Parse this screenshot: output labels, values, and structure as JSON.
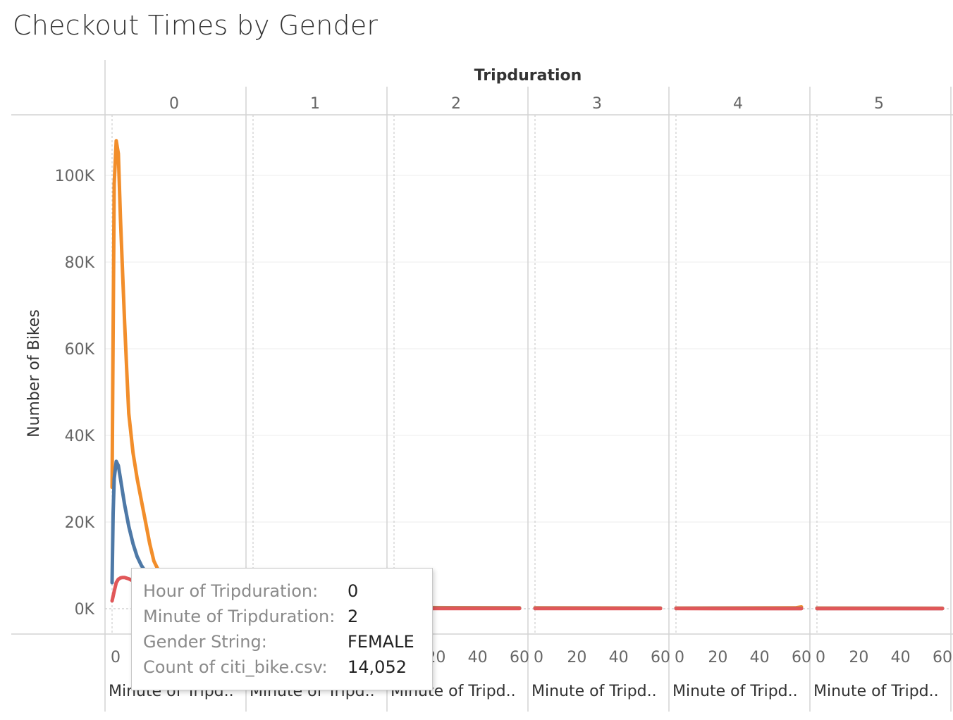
{
  "title": "Checkout Times by Gender",
  "chart_data": {
    "type": "line",
    "column_header": "Tripduration",
    "panels": [
      "0",
      "1",
      "2",
      "3",
      "4",
      "5"
    ],
    "ylabel": "Number of Bikes",
    "xlabel": "Minute of Tripd..",
    "ylim": [
      0,
      115000
    ],
    "yticks": [
      0,
      20000,
      40000,
      60000,
      80000,
      100000
    ],
    "ytick_labels": [
      "0K",
      "20K",
      "40K",
      "60K",
      "80K",
      "100K"
    ],
    "xlim": [
      0,
      60
    ],
    "xticks": [
      0,
      20,
      40,
      60
    ],
    "xtick_labels": [
      "0",
      "20",
      "40",
      "60"
    ],
    "grid": true,
    "series": [
      {
        "color": "#f28e2b",
        "panels": [
          {
            "x": [
              0,
              0.3,
              1,
              2,
              3,
              4,
              5,
              6,
              7,
              8,
              10,
              12,
              14,
              16,
              18,
              20,
              25,
              30,
              40,
              50,
              60
            ],
            "y": [
              28000,
              50000,
              98000,
              108000,
              105000,
              90000,
              78000,
              66000,
              55000,
              45000,
              36000,
              30000,
              25000,
              20000,
              15000,
              11000,
              6000,
              3500,
              1800,
              1000,
              700
            ]
          },
          {
            "x": [
              0,
              60
            ],
            "y": [
              500,
              300
            ]
          },
          {
            "x": [
              0,
              60
            ],
            "y": [
              300,
              200
            ]
          },
          {
            "x": [
              0,
              60
            ],
            "y": [
              200,
              150
            ]
          },
          {
            "x": [
              0,
              57,
              60
            ],
            "y": [
              150,
              200,
              400
            ]
          },
          {
            "x": [
              0,
              60
            ],
            "y": [
              150,
              100
            ]
          }
        ]
      },
      {
        "color": "#4e79a7",
        "panels": [
          {
            "x": [
              0,
              0.5,
              1,
              2,
              3,
              4,
              5,
              6,
              8,
              10,
              12,
              14,
              16,
              18,
              20,
              25,
              30,
              40,
              50,
              60
            ],
            "y": [
              6000,
              22000,
              30000,
              34000,
              33000,
              30000,
              27000,
              24000,
              19000,
              15000,
              12000,
              10000,
              8500,
              7000,
              5500,
              3500,
              2000,
              1000,
              600,
              400
            ]
          },
          {
            "x": [
              0,
              60
            ],
            "y": [
              300,
              200
            ]
          },
          {
            "x": [
              0,
              60
            ],
            "y": [
              150,
              100
            ]
          },
          {
            "x": [
              0,
              60
            ],
            "y": [
              100,
              80
            ]
          },
          {
            "x": [
              0,
              60
            ],
            "y": [
              80,
              60
            ]
          },
          {
            "x": [
              0,
              60
            ],
            "y": [
              60,
              50
            ]
          }
        ]
      },
      {
        "color": "#e15759",
        "panels": [
          {
            "x": [
              0,
              1,
              2,
              3,
              4,
              5,
              6,
              8,
              10,
              14,
              20,
              30,
              40,
              50,
              60
            ],
            "y": [
              1800,
              4000,
              6000,
              6800,
              7100,
              7200,
              7200,
              6900,
              6400,
              5000,
              3500,
              1800,
              900,
              500,
              300
            ]
          },
          {
            "x": [
              0,
              60
            ],
            "y": [
              100,
              60
            ]
          },
          {
            "x": [
              0,
              60
            ],
            "y": [
              50,
              40
            ]
          },
          {
            "x": [
              0,
              60
            ],
            "y": [
              40,
              30
            ]
          },
          {
            "x": [
              0,
              60
            ],
            "y": [
              30,
              20
            ]
          },
          {
            "x": [
              0,
              60
            ],
            "y": [
              20,
              20
            ]
          }
        ]
      }
    ]
  },
  "tooltip": {
    "rows": [
      {
        "label": "Hour of Tripduration:",
        "value": "0"
      },
      {
        "label": "Minute of Tripduration:",
        "value": "2"
      },
      {
        "label": "Gender String:",
        "value": "FEMALE"
      },
      {
        "label": "Count of citi_bike.csv:",
        "value": "14,052"
      }
    ]
  }
}
